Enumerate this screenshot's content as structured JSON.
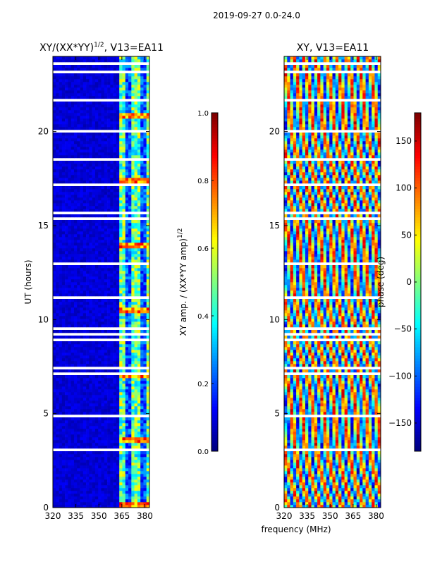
{
  "chart_data": {
    "suptitle": "2019-09-27 0.0-24.0",
    "xlabel": "frequency (MHz)",
    "panels": [
      {
        "type": "heatmap",
        "title_main": "XY/(XX*YY)",
        "title_exp": "1/2",
        "title_rest": ", V13=EA11",
        "ylabel": "UT (hours)",
        "x_ticks": [
          "320",
          "335",
          "350",
          "365",
          "380"
        ],
        "x_tick_values": [
          320,
          335,
          350,
          365,
          380
        ],
        "y_ticks": [
          "0",
          "5",
          "10",
          "15",
          "20"
        ],
        "y_tick_values": [
          0,
          5,
          10,
          15,
          20
        ],
        "xlim": [
          320,
          383
        ],
        "ylim": [
          0,
          24
        ],
        "colorbar": {
          "label_main": "XY amp. / (XX*YY amp)",
          "label_exp": "1/2",
          "ticks": [
            "0.0",
            "0.2",
            "0.4",
            "0.6",
            "0.8",
            "1.0"
          ],
          "tick_values": [
            0.0,
            0.2,
            0.4,
            0.6,
            0.8,
            1.0
          ],
          "range": [
            0.0,
            1.0
          ]
        }
      },
      {
        "type": "heatmap",
        "title_main": "XY, V13=EA11",
        "ylabel": "",
        "x_ticks": [
          "320",
          "335",
          "350",
          "365",
          "380"
        ],
        "x_tick_values": [
          320,
          335,
          350,
          365,
          380
        ],
        "y_ticks": [
          "0",
          "5",
          "10",
          "15",
          "20"
        ],
        "y_tick_values": [
          0,
          5,
          10,
          15,
          20
        ],
        "xlim": [
          320,
          383
        ],
        "ylim": [
          0,
          24
        ],
        "colorbar": {
          "label_main": "phase (deg)",
          "ticks": [
            "−150",
            "−100",
            "−50",
            "0",
            "50",
            "100",
            "150"
          ],
          "tick_values": [
            -150,
            -100,
            -50,
            0,
            50,
            100,
            150
          ],
          "range": [
            -180,
            180
          ]
        }
      }
    ]
  }
}
